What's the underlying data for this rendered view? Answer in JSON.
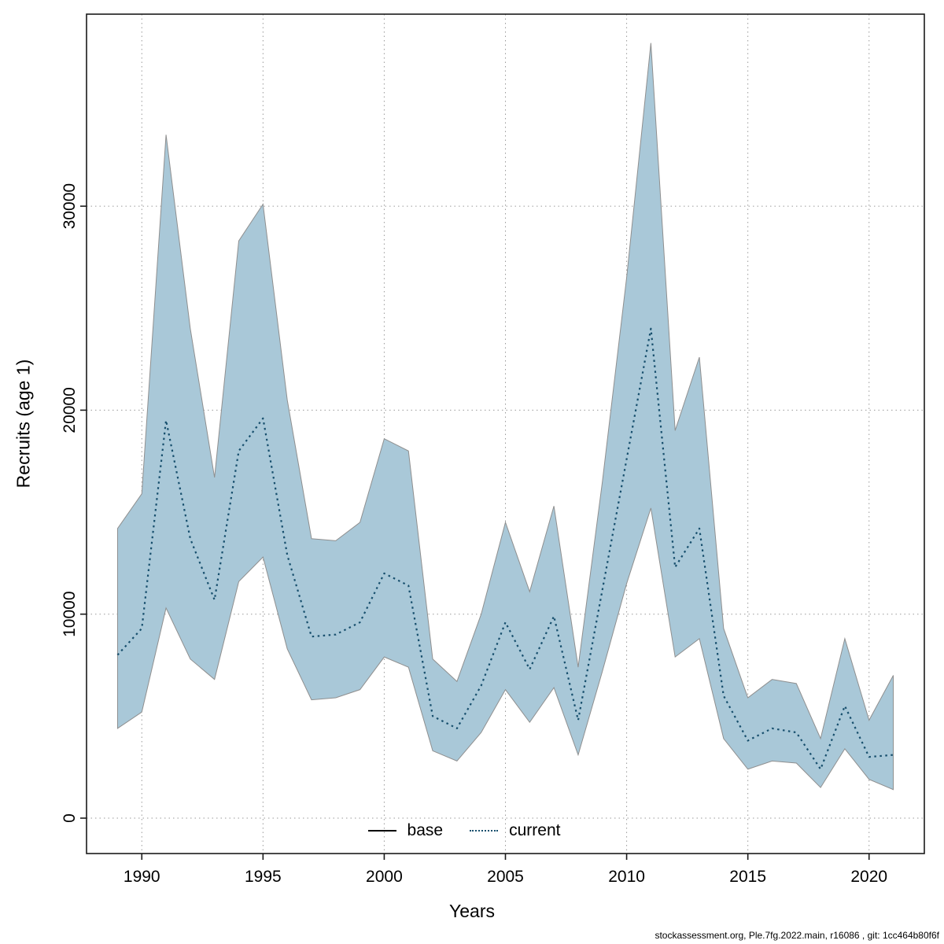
{
  "page": {
    "footer": "stockassessment.org, Ple.7fg.2022.main, r16086 , git: 1cc464b80f6f"
  },
  "chart_data": {
    "type": "line",
    "title": "",
    "xlabel": "Years",
    "ylabel": "Recruits (age 1)",
    "x_ticks": [
      1990,
      1995,
      2000,
      2005,
      2010,
      2015,
      2020
    ],
    "y_ticks": [
      0,
      10000,
      20000,
      30000
    ],
    "xlim": [
      1989,
      2021
    ],
    "ylim": [
      0,
      39000
    ],
    "grid": true,
    "legend_position": "bottom-center-inside",
    "legend": [
      {
        "label": "base",
        "style": "solid",
        "color": "#000000"
      },
      {
        "label": "current",
        "style": "dotted",
        "color": "#174f6d"
      }
    ],
    "band_color": "#a9c8d8",
    "band_edge_color": "#8f8f8f",
    "line_color": "#174f6d",
    "years": [
      1989,
      1990,
      1991,
      1992,
      1993,
      1994,
      1995,
      1996,
      1997,
      1998,
      1999,
      2000,
      2001,
      2002,
      2003,
      2004,
      2005,
      2006,
      2007,
      2008,
      2009,
      2010,
      2011,
      2012,
      2013,
      2014,
      2015,
      2016,
      2017,
      2018,
      2019,
      2020,
      2021
    ],
    "series": [
      {
        "name": "current",
        "values": [
          8000,
          9300,
          19500,
          13700,
          10700,
          18000,
          19600,
          12900,
          8900,
          9000,
          9600,
          12000,
          11400,
          5000,
          4400,
          6500,
          9600,
          7300,
          9900,
          4800,
          11200,
          17600,
          24000,
          12300,
          14200,
          6000,
          3800,
          4400,
          4200,
          2400,
          5500,
          3000,
          3100
        ]
      }
    ],
    "band": {
      "name": "confidence-interval",
      "lower": [
        4400,
        5200,
        10300,
        7800,
        6800,
        11600,
        12800,
        8300,
        5800,
        5900,
        6300,
        7900,
        7400,
        3300,
        2800,
        4200,
        6300,
        4700,
        6400,
        3100,
        7200,
        11500,
        15200,
        7900,
        8800,
        3900,
        2400,
        2800,
        2700,
        1500,
        3400,
        1900,
        1400
      ],
      "upper": [
        14200,
        15900,
        33500,
        24000,
        16700,
        28300,
        30100,
        20500,
        13700,
        13600,
        14500,
        18600,
        18000,
        7800,
        6700,
        10000,
        14500,
        11100,
        15300,
        7400,
        16500,
        26500,
        38000,
        19000,
        22600,
        9300,
        5900,
        6800,
        6600,
        3900,
        8800,
        4800,
        7000
      ]
    }
  }
}
